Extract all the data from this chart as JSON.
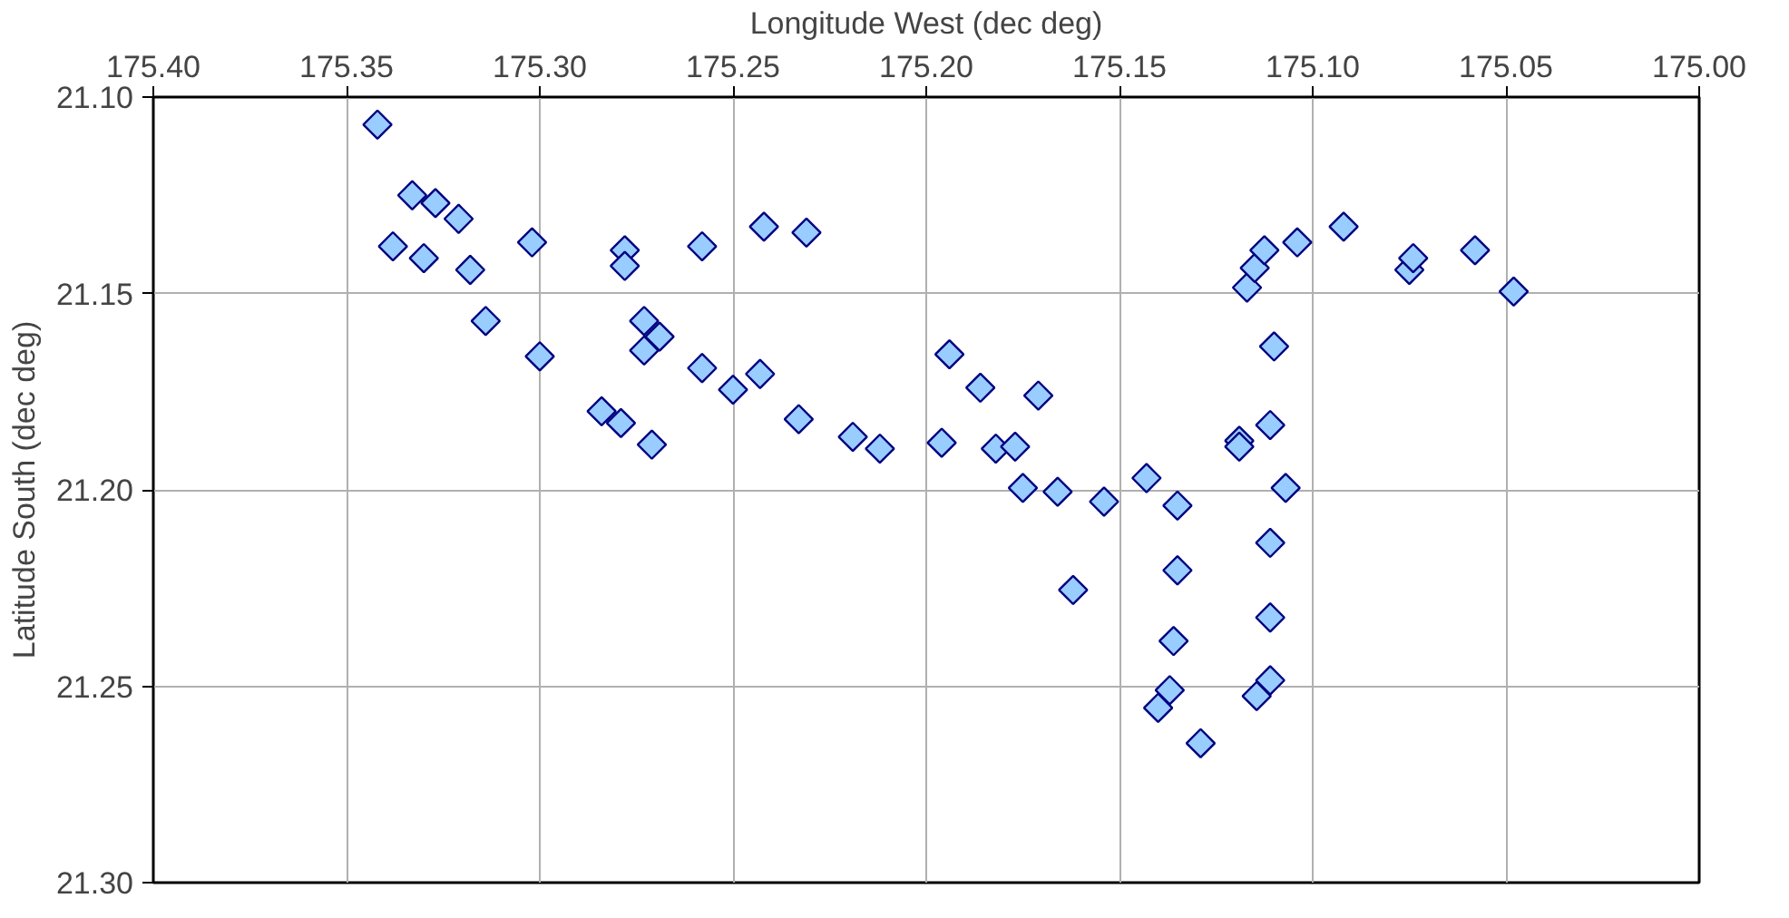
{
  "chart_data": {
    "type": "scatter",
    "xlabel": "Longitude West (dec deg)",
    "ylabel": "Latitude South (dec deg)",
    "xlim": [
      175.4,
      175.0
    ],
    "xticks": [
      {
        "value": 175.4,
        "label": "175.40"
      },
      {
        "value": 175.35,
        "label": "175.35"
      },
      {
        "value": 175.3,
        "label": "175.30"
      },
      {
        "value": 175.25,
        "label": "175.25"
      },
      {
        "value": 175.2,
        "label": "175.20"
      },
      {
        "value": 175.15,
        "label": "175.15"
      },
      {
        "value": 175.1,
        "label": "175.10"
      },
      {
        "value": 175.05,
        "label": "175.05"
      },
      {
        "value": 175.0,
        "label": "175.00"
      }
    ],
    "ylim": [
      21.3,
      21.1
    ],
    "yticks": [
      {
        "value": 21.1,
        "label": "21.10"
      },
      {
        "value": 21.15,
        "label": "21.15"
      },
      {
        "value": 21.2,
        "label": "21.20"
      },
      {
        "value": 21.25,
        "label": "21.25"
      },
      {
        "value": 21.3,
        "label": "21.30"
      }
    ],
    "grid": true,
    "marker": "diamond",
    "series": [
      {
        "color": "#99ccff",
        "x": [
          175.342,
          175.333,
          175.327,
          175.321,
          175.338,
          175.33,
          175.318,
          175.302,
          175.278,
          175.278,
          175.258,
          175.242,
          175.314,
          175.3,
          175.273,
          175.269,
          175.273,
          175.258,
          175.25,
          175.243,
          175.284,
          175.279,
          175.271,
          175.231,
          175.194,
          175.186,
          175.171,
          175.233,
          175.219,
          175.212,
          175.196,
          175.182,
          175.177,
          175.175,
          175.166,
          175.154,
          175.143,
          175.135,
          175.162,
          175.135,
          175.136,
          175.137,
          175.14,
          175.129,
          175.117,
          175.115,
          175.1125,
          175.104,
          175.092,
          175.075,
          175.074,
          175.058,
          175.048,
          175.11,
          175.111,
          175.119,
          175.119,
          175.107,
          175.111,
          175.111,
          175.111,
          175.1145
        ],
        "values": [
          21.107,
          21.125,
          21.127,
          21.131,
          21.138,
          21.141,
          21.144,
          21.137,
          21.139,
          21.143,
          21.138,
          21.133,
          21.157,
          21.166,
          21.157,
          21.161,
          21.1645,
          21.169,
          21.1745,
          21.1705,
          21.18,
          21.183,
          21.1885,
          21.1345,
          21.1655,
          21.174,
          21.176,
          21.182,
          21.1865,
          21.1895,
          21.188,
          21.1895,
          21.189,
          21.1995,
          21.2005,
          21.203,
          21.197,
          21.204,
          21.2255,
          21.2205,
          21.2385,
          21.251,
          21.2555,
          21.2645,
          21.1485,
          21.1435,
          21.139,
          21.137,
          21.133,
          21.144,
          21.141,
          21.139,
          21.1495,
          21.1635,
          21.1835,
          21.1875,
          21.189,
          21.1995,
          21.2135,
          21.2325,
          21.2485,
          21.2525
        ]
      }
    ]
  }
}
